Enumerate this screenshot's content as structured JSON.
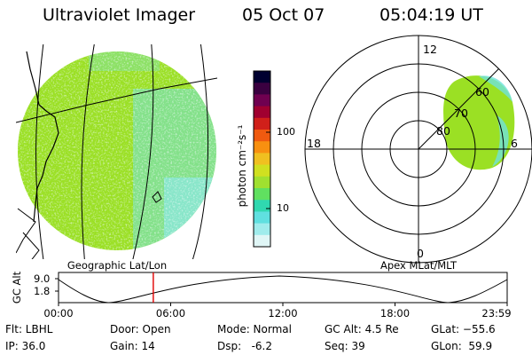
{
  "header": {
    "title": "Ultraviolet Imager",
    "date": "05 Oct 07",
    "time": "05:04:19 UT"
  },
  "left_panel": {
    "label": "Geographic Lat/Lon"
  },
  "right_panel": {
    "label": "Apex MLat/MLT",
    "mlt_labels": [
      "12",
      "18",
      "6",
      "0"
    ],
    "mlat_labels": [
      "60",
      "70",
      "80"
    ]
  },
  "colorbar": {
    "unit_label": "photon cm⁻²s⁻¹",
    "ticks": [
      "100",
      "10"
    ],
    "colors": [
      "#000030",
      "#3a0040",
      "#700050",
      "#a00030",
      "#d0201a",
      "#f05a10",
      "#f89010",
      "#f0c020",
      "#d0e020",
      "#a0e030",
      "#60e060",
      "#30d8b0",
      "#60e0e0",
      "#a0ecec",
      "#e0f6f6"
    ]
  },
  "timeline": {
    "ylabel": "GC Alt",
    "y_ticks": [
      "9.0",
      "1.8"
    ],
    "x_ticks": [
      "00:00",
      "06:00",
      "12:00",
      "18:00",
      "23:59"
    ],
    "current_time_hours": 5.07
  },
  "info": {
    "row1": [
      "Flt: LBHL",
      "Door: Open",
      "Mode: Normal",
      "GC Alt: 4.5 Re",
      "GLat: −55.6"
    ],
    "row2": [
      "IP: 36.0",
      "Gain: 14",
      "Dsp:   -6.2",
      "Seq: 39",
      "GLon:  59.9"
    ]
  },
  "image_colors": {
    "main": "#9be024",
    "cyan": "#6fe2dc",
    "speckle": "#c8f0e8"
  }
}
